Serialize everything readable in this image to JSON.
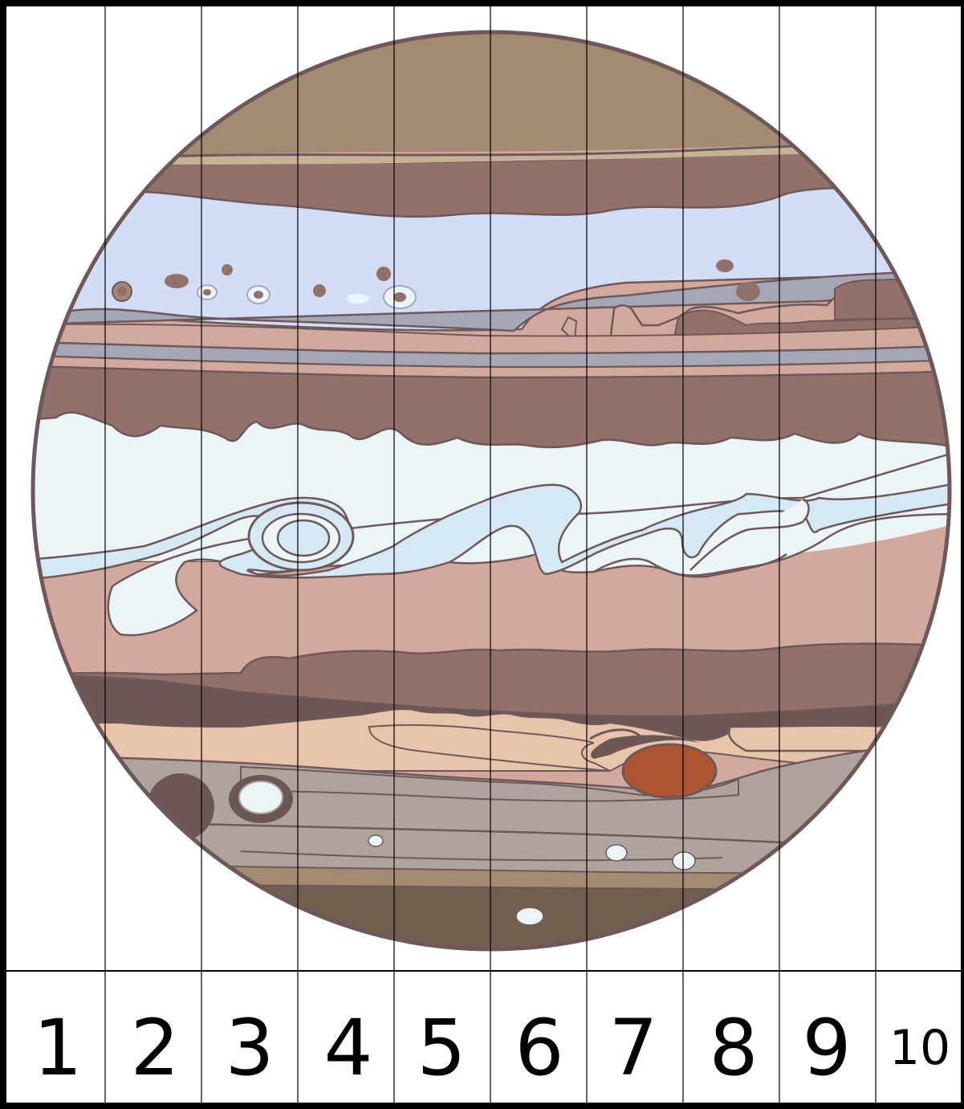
{
  "strips": [
    {
      "number": "1"
    },
    {
      "number": "2"
    },
    {
      "number": "3"
    },
    {
      "number": "4"
    },
    {
      "number": "5"
    },
    {
      "number": "6"
    },
    {
      "number": "7"
    },
    {
      "number": "8"
    },
    {
      "number": "9"
    },
    {
      "number": "10"
    }
  ],
  "planet": {
    "subject": "jupiter-illustration",
    "colors": {
      "outline": "#6e585a",
      "top_cap": "#a38a72",
      "dark_band": "#93716b",
      "lavender": "#d4ddf6",
      "pink_band": "#d4a99d",
      "steel_band": "#a5a7b6",
      "white_zone": "#ebf4f7",
      "swirl": "#d5e9f4",
      "deep_band": "#6d5656",
      "peach": "#e8c5aa",
      "great_red_spot": "#ad5532",
      "gray_band": "#b0a39d",
      "bottom_cap": "#71604f"
    }
  }
}
